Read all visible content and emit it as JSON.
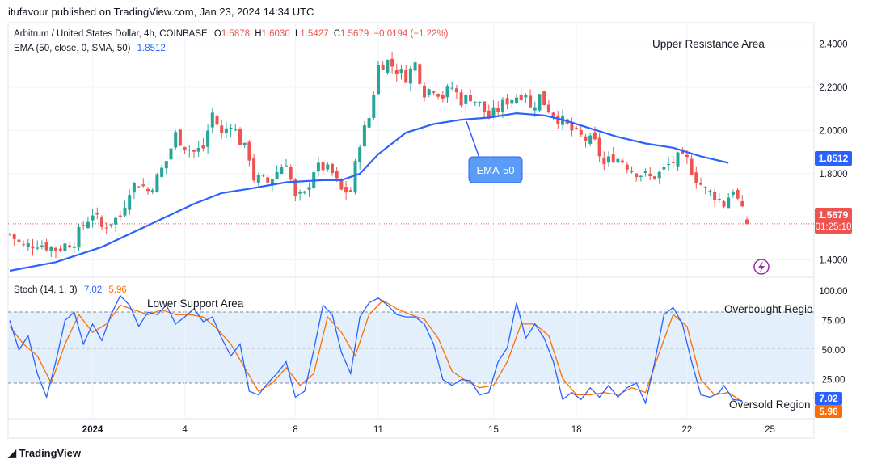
{
  "header": {
    "published_by": "itufavour published on TradingView.com, Jan 23, 2024 14:34 UTC"
  },
  "symbol": {
    "title": "Arbitrum / United States Dollar, 4h, COINBASE",
    "o_label": "O",
    "open": "1.5878",
    "h_label": "H",
    "high": "1.6030",
    "l_label": "L",
    "low": "1.5427",
    "c_label": "C",
    "close": "1.5679",
    "change": "−0.0194 (−1.22%)"
  },
  "ema_legend": {
    "label": "EMA (50, close, 0, SMA, 50)",
    "value": "1.8512"
  },
  "stoch_legend": {
    "label": "Stoch (14, 1, 3)",
    "k": "7.02",
    "d": "5.96"
  },
  "price_badge": {
    "price": "1.5679",
    "countdown": "01:25:10"
  },
  "ema_badge": "1.8512",
  "annotations": {
    "upper_resistance": "Upper Resistance Area",
    "ema_callout": "EMA-50",
    "lower_support": "Lower Support Area",
    "overbought": "Overbought Regio",
    "oversold": "Oversold Region"
  },
  "branding": "TradingView",
  "colors": {
    "up": "#26a69a",
    "down": "#ef5350",
    "ema": "#2962ff",
    "k": "#2962ff",
    "d": "#ff6d00",
    "band": "#e3f0fb",
    "callout": "#5b9cf6"
  },
  "chart_data": [
    {
      "type": "candlestick",
      "title": "Arbitrum / United States Dollar, 4h, COINBASE",
      "ylim": [
        1.32,
        2.5
      ],
      "y_ticks": [
        "1.4000",
        "1.6000",
        "1.8000",
        "2.0000",
        "2.2000",
        "2.4000"
      ],
      "y_tick_values": [
        1.4,
        1.6,
        1.8,
        2.0,
        2.2,
        2.4
      ],
      "x_ticks": [
        "2024",
        "4",
        "8",
        "11",
        "15",
        "18",
        "22",
        "25"
      ],
      "x_tick_index": [
        18,
        38,
        62,
        80,
        105,
        123,
        147,
        165
      ],
      "bars": 170,
      "last_close": 1.5679,
      "close_path": [
        [
          0,
          1.52
        ],
        [
          3,
          1.46
        ],
        [
          6,
          1.48
        ],
        [
          10,
          1.45
        ],
        [
          14,
          1.49
        ],
        [
          16,
          1.56
        ],
        [
          18,
          1.62
        ],
        [
          20,
          1.55
        ],
        [
          22,
          1.58
        ],
        [
          24,
          1.6
        ],
        [
          26,
          1.73
        ],
        [
          28,
          1.76
        ],
        [
          30,
          1.72
        ],
        [
          32,
          1.78
        ],
        [
          34,
          1.86
        ],
        [
          36,
          1.98
        ],
        [
          38,
          1.93
        ],
        [
          40,
          1.9
        ],
        [
          42,
          1.92
        ],
        [
          44,
          2.08
        ],
        [
          46,
          1.98
        ],
        [
          48,
          2.04
        ],
        [
          50,
          1.95
        ],
        [
          52,
          1.88
        ],
        [
          53,
          1.78
        ],
        [
          56,
          1.76
        ],
        [
          58,
          1.81
        ],
        [
          60,
          1.86
        ],
        [
          62,
          1.68
        ],
        [
          64,
          1.7
        ],
        [
          66,
          1.82
        ],
        [
          68,
          1.83
        ],
        [
          70,
          1.8
        ],
        [
          72,
          1.72
        ],
        [
          74,
          1.72
        ],
        [
          76,
          1.95
        ],
        [
          78,
          2.06
        ],
        [
          80,
          2.3
        ],
        [
          82,
          2.32
        ],
        [
          84,
          2.28
        ],
        [
          86,
          2.25
        ],
        [
          88,
          2.31
        ],
        [
          90,
          2.18
        ],
        [
          92,
          2.2
        ],
        [
          94,
          2.16
        ],
        [
          96,
          2.2
        ],
        [
          98,
          2.14
        ],
        [
          100,
          2.16
        ],
        [
          102,
          2.12
        ],
        [
          104,
          2.06
        ],
        [
          106,
          2.1
        ],
        [
          108,
          2.14
        ],
        [
          110,
          2.16
        ],
        [
          112,
          2.18
        ],
        [
          113,
          2.1
        ],
        [
          115,
          2.16
        ],
        [
          117,
          2.1
        ],
        [
          119,
          2.06
        ],
        [
          121,
          2.02
        ],
        [
          123,
          1.98
        ],
        [
          125,
          1.96
        ],
        [
          127,
          1.94
        ],
        [
          129,
          1.84
        ],
        [
          131,
          1.88
        ],
        [
          133,
          1.86
        ],
        [
          135,
          1.82
        ],
        [
          137,
          1.8
        ],
        [
          139,
          1.78
        ],
        [
          141,
          1.8
        ],
        [
          143,
          1.84
        ],
        [
          145,
          1.87
        ],
        [
          147,
          1.86
        ],
        [
          149,
          1.78
        ],
        [
          151,
          1.72
        ],
        [
          153,
          1.7
        ],
        [
          155,
          1.66
        ],
        [
          157,
          1.73
        ],
        [
          159,
          1.62
        ],
        [
          160,
          1.5679
        ]
      ],
      "ema_path": [
        [
          0,
          1.35
        ],
        [
          10,
          1.39
        ],
        [
          20,
          1.46
        ],
        [
          30,
          1.56
        ],
        [
          40,
          1.66
        ],
        [
          46,
          1.71
        ],
        [
          52,
          1.73
        ],
        [
          60,
          1.76
        ],
        [
          68,
          1.77
        ],
        [
          72,
          1.77
        ],
        [
          76,
          1.8
        ],
        [
          80,
          1.89
        ],
        [
          86,
          1.99
        ],
        [
          92,
          2.03
        ],
        [
          98,
          2.05
        ],
        [
          104,
          2.06
        ],
        [
          110,
          2.08
        ],
        [
          116,
          2.07
        ],
        [
          120,
          2.05
        ],
        [
          126,
          2.01
        ],
        [
          132,
          1.97
        ],
        [
          138,
          1.94
        ],
        [
          144,
          1.92
        ],
        [
          150,
          1.88
        ],
        [
          156,
          1.85
        ]
      ]
    },
    {
      "type": "line",
      "title": "Stoch (14, 1, 3)",
      "ylim": [
        0,
        100
      ],
      "y_ticks": [
        "25.00",
        "50.00",
        "75.00",
        "100.00"
      ],
      "y_tick_values": [
        25,
        50,
        75,
        100
      ],
      "levels": {
        "upper": 80,
        "middle": 50,
        "lower": 20
      },
      "series": [
        {
          "name": "%K",
          "points": [
            [
              0,
              75
            ],
            [
              2,
              50
            ],
            [
              4,
              62
            ],
            [
              6,
              30
            ],
            [
              8,
              10
            ],
            [
              10,
              40
            ],
            [
              12,
              75
            ],
            [
              14,
              82
            ],
            [
              16,
              55
            ],
            [
              18,
              72
            ],
            [
              20,
              58
            ],
            [
              22,
              80
            ],
            [
              24,
              96
            ],
            [
              26,
              88
            ],
            [
              28,
              70
            ],
            [
              30,
              82
            ],
            [
              32,
              80
            ],
            [
              34,
              88
            ],
            [
              36,
              72
            ],
            [
              38,
              78
            ],
            [
              40,
              85
            ],
            [
              42,
              74
            ],
            [
              44,
              78
            ],
            [
              46,
              60
            ],
            [
              48,
              45
            ],
            [
              50,
              55
            ],
            [
              52,
              15
            ],
            [
              54,
              12
            ],
            [
              56,
              22
            ],
            [
              58,
              30
            ],
            [
              60,
              40
            ],
            [
              62,
              10
            ],
            [
              64,
              15
            ],
            [
              66,
              50
            ],
            [
              68,
              88
            ],
            [
              70,
              80
            ],
            [
              72,
              48
            ],
            [
              74,
              30
            ],
            [
              76,
              78
            ],
            [
              78,
              90
            ],
            [
              80,
              94
            ],
            [
              82,
              88
            ],
            [
              84,
              80
            ],
            [
              86,
              78
            ],
            [
              88,
              78
            ],
            [
              90,
              72
            ],
            [
              92,
              55
            ],
            [
              94,
              25
            ],
            [
              96,
              20
            ],
            [
              98,
              25
            ],
            [
              100,
              24
            ],
            [
              102,
              12
            ],
            [
              104,
              14
            ],
            [
              106,
              40
            ],
            [
              108,
              52
            ],
            [
              110,
              90
            ],
            [
              112,
              60
            ],
            [
              114,
              72
            ],
            [
              116,
              60
            ],
            [
              118,
              40
            ],
            [
              120,
              8
            ],
            [
              122,
              14
            ],
            [
              124,
              8
            ],
            [
              126,
              18
            ],
            [
              128,
              10
            ],
            [
              130,
              20
            ],
            [
              132,
              10
            ],
            [
              134,
              18
            ],
            [
              136,
              22
            ],
            [
              138,
              5
            ],
            [
              140,
              40
            ],
            [
              142,
              80
            ],
            [
              144,
              86
            ],
            [
              146,
              72
            ],
            [
              148,
              40
            ],
            [
              150,
              12
            ],
            [
              152,
              10
            ],
            [
              154,
              14
            ],
            [
              155,
              20
            ],
            [
              157,
              8
            ],
            [
              159,
              7.02
            ]
          ]
        },
        {
          "name": "%D",
          "points": [
            [
              0,
              70
            ],
            [
              3,
              55
            ],
            [
              6,
              45
            ],
            [
              9,
              22
            ],
            [
              12,
              55
            ],
            [
              15,
              80
            ],
            [
              18,
              65
            ],
            [
              21,
              72
            ],
            [
              24,
              88
            ],
            [
              27,
              84
            ],
            [
              30,
              80
            ],
            [
              33,
              84
            ],
            [
              36,
              80
            ],
            [
              39,
              80
            ],
            [
              42,
              78
            ],
            [
              45,
              68
            ],
            [
              48,
              55
            ],
            [
              51,
              35
            ],
            [
              54,
              15
            ],
            [
              57,
              22
            ],
            [
              60,
              35
            ],
            [
              63,
              20
            ],
            [
              66,
              30
            ],
            [
              69,
              78
            ],
            [
              72,
              65
            ],
            [
              75,
              45
            ],
            [
              78,
              80
            ],
            [
              81,
              92
            ],
            [
              84,
              85
            ],
            [
              87,
              80
            ],
            [
              90,
              76
            ],
            [
              93,
              60
            ],
            [
              96,
              32
            ],
            [
              99,
              24
            ],
            [
              102,
              18
            ],
            [
              105,
              20
            ],
            [
              108,
              40
            ],
            [
              111,
              72
            ],
            [
              114,
              72
            ],
            [
              117,
              62
            ],
            [
              120,
              26
            ],
            [
              123,
              12
            ],
            [
              126,
              12
            ],
            [
              129,
              14
            ],
            [
              132,
              12
            ],
            [
              135,
              18
            ],
            [
              138,
              14
            ],
            [
              141,
              48
            ],
            [
              144,
              80
            ],
            [
              147,
              70
            ],
            [
              150,
              25
            ],
            [
              153,
              12
            ],
            [
              156,
              14
            ],
            [
              159,
              5.96
            ]
          ]
        }
      ]
    }
  ]
}
